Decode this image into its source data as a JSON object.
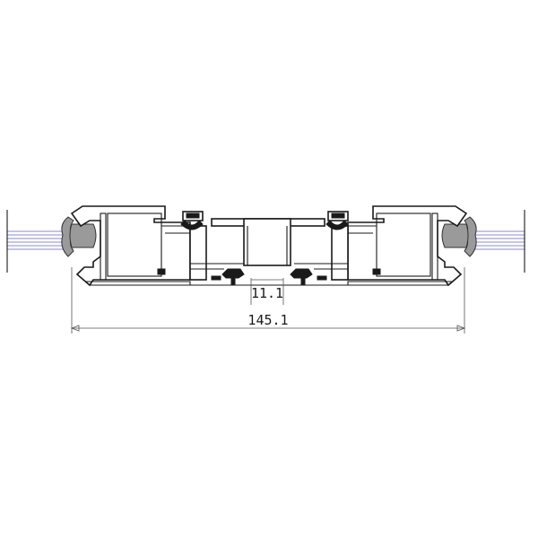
{
  "drawing": {
    "dimension_inner": "11.1",
    "dimension_overall": "145.1"
  },
  "colors": {
    "outline": "#1a1a1a",
    "glass_lines": "#8a8ad8",
    "gasket": "#9a9a9a"
  }
}
